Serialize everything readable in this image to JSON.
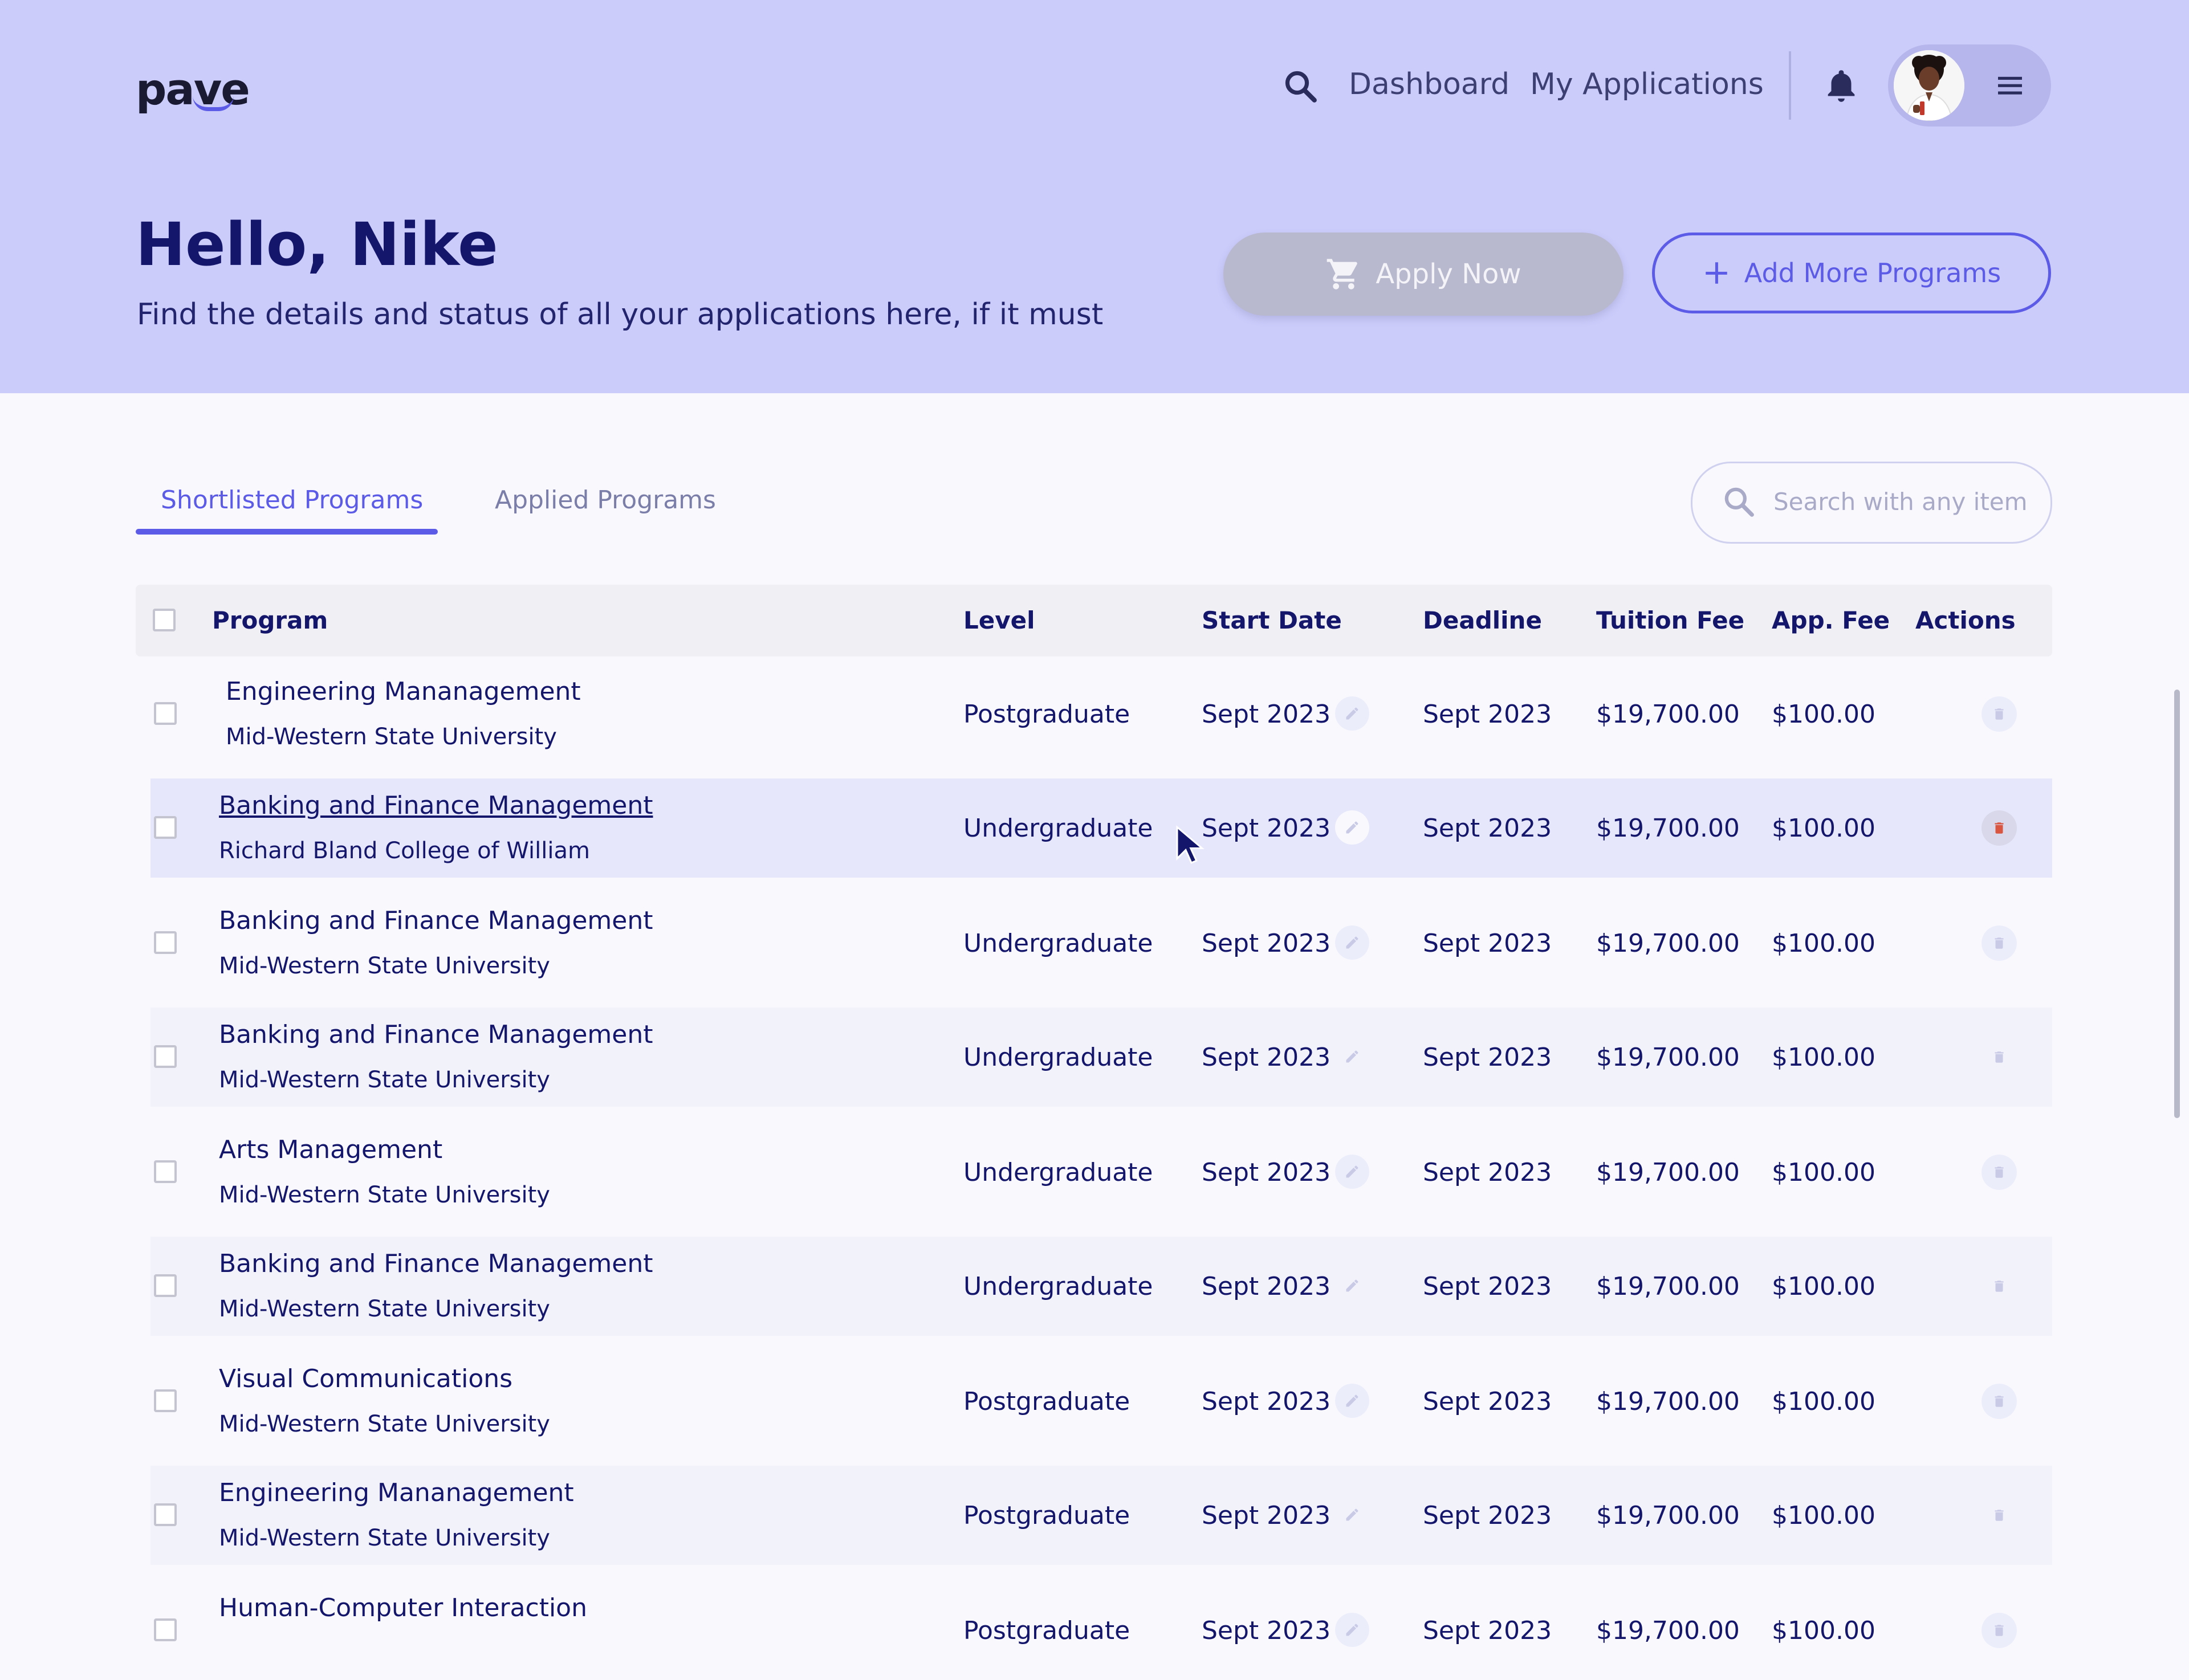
{
  "brand": {
    "logo": "pave"
  },
  "nav": {
    "dashboard": "Dashboard",
    "my_applications": "My Applications"
  },
  "hero": {
    "greeting": "Hello, Nike",
    "subtitle": "Find the details and status of all your applications here, if it must",
    "apply_label": "Apply Now",
    "add_label": "Add More Programs"
  },
  "tabs": {
    "shortlisted": "Shortlisted Programs",
    "applied": "Applied Programs"
  },
  "search": {
    "placeholder": "Search with any item"
  },
  "table": {
    "headers": {
      "program": "Program",
      "level": "Level",
      "start": "Start Date",
      "deadline": "Deadline",
      "tuition": "Tuition Fee",
      "app_fee": "App. Fee",
      "actions": "Actions"
    },
    "rows": [
      {
        "program": "Engineering Mananagement",
        "university": "Mid-Western State University",
        "level": "Postgraduate",
        "start": "Sept 2023",
        "deadline": "Sept 2023",
        "tuition": "$19,700.00",
        "app_fee": "$100.00"
      },
      {
        "program": "Banking and Finance Management",
        "university": "Richard Bland College of William",
        "level": "Undergraduate",
        "start": "Sept 2023",
        "deadline": "Sept 2023",
        "tuition": "$19,700.00",
        "app_fee": "$100.00"
      },
      {
        "program": "Banking and Finance Management",
        "university": "Mid-Western State University",
        "level": "Undergraduate",
        "start": "Sept 2023",
        "deadline": "Sept 2023",
        "tuition": "$19,700.00",
        "app_fee": "$100.00"
      },
      {
        "program": "Banking and Finance Management",
        "university": "Mid-Western State University",
        "level": "Undergraduate",
        "start": "Sept 2023",
        "deadline": "Sept 2023",
        "tuition": "$19,700.00",
        "app_fee": "$100.00"
      },
      {
        "program": "Arts Management",
        "university": "Mid-Western State University",
        "level": "Undergraduate",
        "start": "Sept 2023",
        "deadline": "Sept 2023",
        "tuition": "$19,700.00",
        "app_fee": "$100.00"
      },
      {
        "program": "Banking and Finance Management",
        "university": "Mid-Western State University",
        "level": "Undergraduate",
        "start": "Sept 2023",
        "deadline": "Sept 2023",
        "tuition": "$19,700.00",
        "app_fee": "$100.00"
      },
      {
        "program": "Visual Communications",
        "university": "Mid-Western State University",
        "level": "Postgraduate",
        "start": "Sept 2023",
        "deadline": "Sept 2023",
        "tuition": "$19,700.00",
        "app_fee": "$100.00"
      },
      {
        "program": "Engineering Mananagement",
        "university": "Mid-Western State University",
        "level": "Postgraduate",
        "start": "Sept 2023",
        "deadline": "Sept 2023",
        "tuition": "$19,700.00",
        "app_fee": "$100.00"
      },
      {
        "program": "Human-Computer Interaction",
        "university": "",
        "level": "Postgraduate",
        "start": "Sept 2023",
        "deadline": "Sept 2023",
        "tuition": "$19,700.00",
        "app_fee": "$100.00"
      }
    ]
  },
  "colors": {
    "header_bg": "#ccccfb",
    "accent": "#5b5be8",
    "text_dark": "#14166b",
    "delete_active": "#d9553f",
    "hover_row": "#e6e7fb"
  },
  "icons": [
    "search-icon",
    "bell-icon",
    "hamburger-icon",
    "cart-icon",
    "plus-icon",
    "edit-icon",
    "trash-icon",
    "cursor-icon"
  ]
}
